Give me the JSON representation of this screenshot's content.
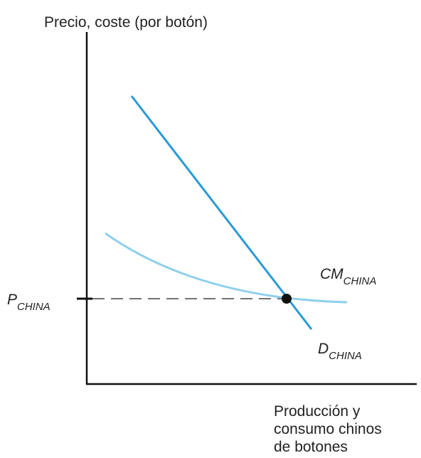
{
  "diagram": {
    "y_axis_label": "Precio, coste (por botón)",
    "x_axis_label": [
      "Producción y",
      "consumo chinos",
      "de botones"
    ],
    "price_label": {
      "main": "P",
      "sub": "CHINA"
    },
    "cost_label": {
      "main": "CM",
      "sub": "CHINA"
    },
    "demand_label": {
      "main": "D",
      "sub": "CHINA"
    }
  }
}
